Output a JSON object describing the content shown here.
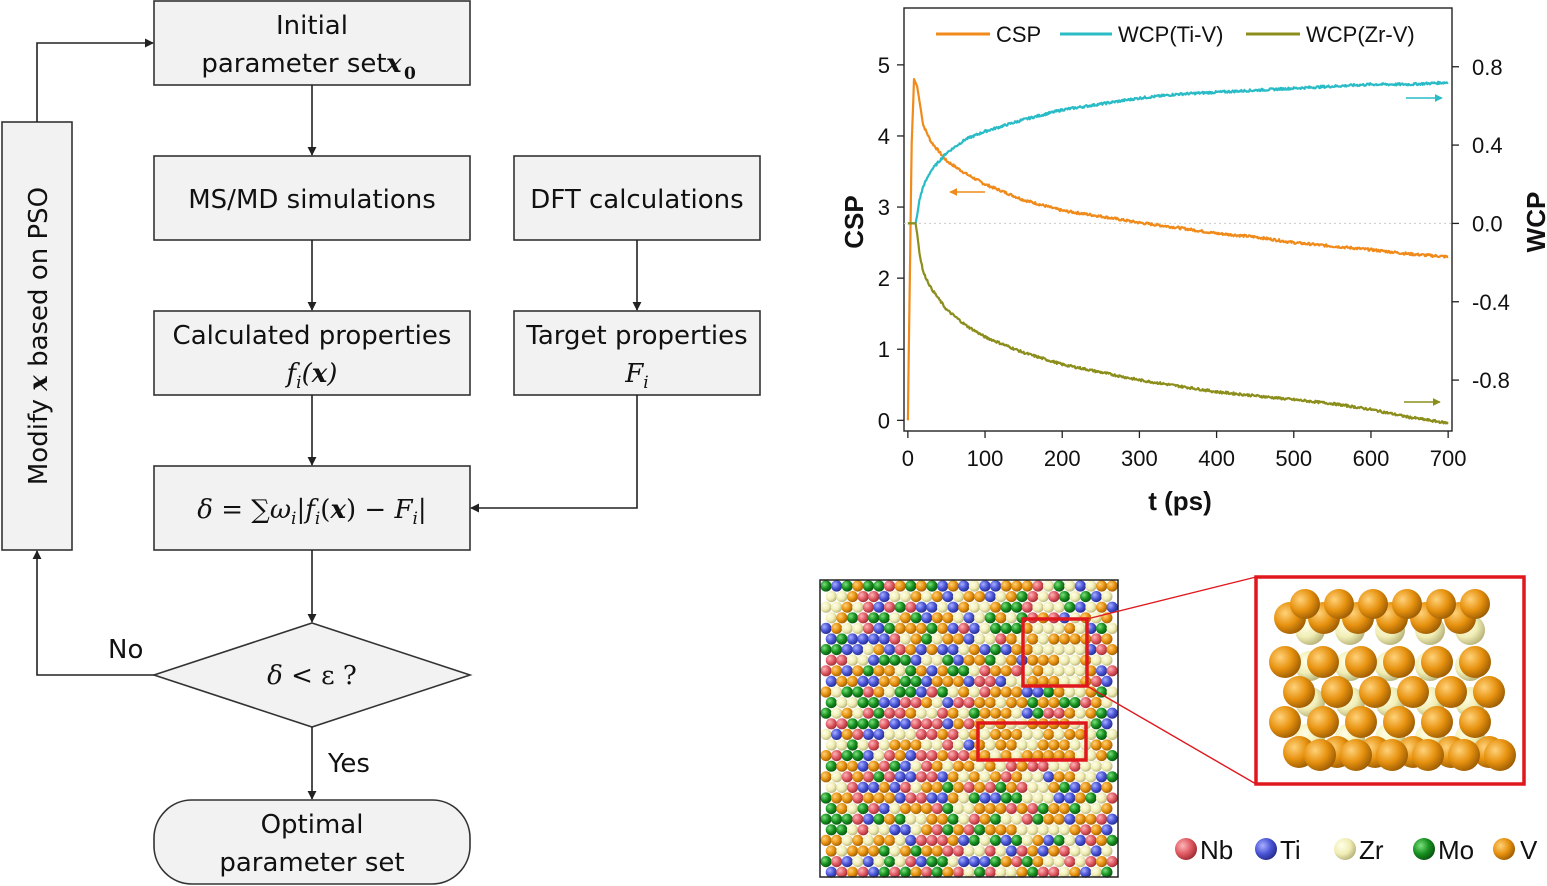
{
  "flowchart": {
    "initial": {
      "line1": "Initial",
      "line2": "parameter set",
      "symbol": "x",
      "subscript": "0"
    },
    "simulation": "MS/MD simulations",
    "dft": "DFT calculations",
    "calculated": {
      "line1": "Calculated properties",
      "math": "f i(x)"
    },
    "target": {
      "line1": "Target properties",
      "math": "F i"
    },
    "objective": "δ = ∑ωi|fi(x) − Fi|",
    "decision": "δ <  ε?",
    "no_label": "No",
    "yes_label": "Yes",
    "optimal": {
      "line1": "Optimal",
      "line2": "parameter set"
    },
    "modify": {
      "prefix": "Modify ",
      "symbol": "x",
      "suffix": " based on PSO"
    }
  },
  "chart_data": {
    "type": "line",
    "xlabel": "t (ps)",
    "ylabel_left": "CSP",
    "ylabel_right": "WCP",
    "xlim": [
      -5,
      705
    ],
    "ylim_left": [
      -0.15,
      5.8
    ],
    "ylim_right": [
      -1.06,
      1.1
    ],
    "x_ticks": [
      0,
      100,
      200,
      300,
      400,
      500,
      600,
      700
    ],
    "y_ticks_left": [
      0,
      1,
      2,
      3,
      4,
      5
    ],
    "y_ticks_right": [
      0.8,
      0.4,
      0.0,
      -0.4,
      -0.8
    ],
    "y_tick_labels_right": [
      "0.8",
      "0.4",
      "0.0",
      "-0.4",
      "-0.8"
    ],
    "legend_placement": "top",
    "series": [
      {
        "name": "CSP",
        "axis": "left",
        "color": "#f08a1a",
        "x": [
          0,
          5,
          8,
          12,
          20,
          30,
          50,
          75,
          100,
          150,
          200,
          250,
          300,
          350,
          400,
          450,
          500,
          550,
          600,
          650,
          700
        ],
        "y": [
          0.0,
          3.9,
          4.8,
          4.7,
          4.15,
          3.92,
          3.65,
          3.47,
          3.32,
          3.1,
          2.95,
          2.87,
          2.78,
          2.71,
          2.63,
          2.58,
          2.5,
          2.45,
          2.4,
          2.34,
          2.3
        ]
      },
      {
        "name": "WCP(Ti-V)",
        "axis": "right",
        "color": "#29bcc6",
        "x": [
          0,
          5,
          10,
          12,
          15,
          20,
          30,
          50,
          75,
          100,
          150,
          200,
          250,
          300,
          350,
          400,
          450,
          500,
          550,
          600,
          650,
          700
        ],
        "y": [
          0.0,
          0.0,
          0.0,
          0.04,
          0.12,
          0.19,
          0.27,
          0.36,
          0.43,
          0.47,
          0.53,
          0.58,
          0.61,
          0.64,
          0.66,
          0.67,
          0.68,
          0.69,
          0.7,
          0.71,
          0.71,
          0.72
        ]
      },
      {
        "name": "WCP(Zr-V)",
        "axis": "right",
        "color": "#8c8e1b",
        "x": [
          0,
          5,
          10,
          12,
          15,
          20,
          30,
          50,
          75,
          100,
          150,
          200,
          250,
          300,
          350,
          400,
          450,
          500,
          550,
          600,
          650,
          700
        ],
        "y": [
          0.0,
          0.0,
          0.0,
          -0.05,
          -0.15,
          -0.25,
          -0.33,
          -0.44,
          -0.52,
          -0.58,
          -0.66,
          -0.72,
          -0.76,
          -0.8,
          -0.83,
          -0.86,
          -0.88,
          -0.9,
          -0.92,
          -0.95,
          -0.99,
          -1.02
        ]
      }
    ]
  },
  "structure": {
    "legend": [
      {
        "element": "Nb",
        "color": "#e05a63"
      },
      {
        "element": "Ti",
        "color": "#4a55d6"
      },
      {
        "element": "Zr",
        "color": "#f1eeb6"
      },
      {
        "element": "Mo",
        "color": "#17911f"
      },
      {
        "element": "V",
        "color": "#e7920f"
      }
    ],
    "highlight_color": "#e0181e"
  }
}
